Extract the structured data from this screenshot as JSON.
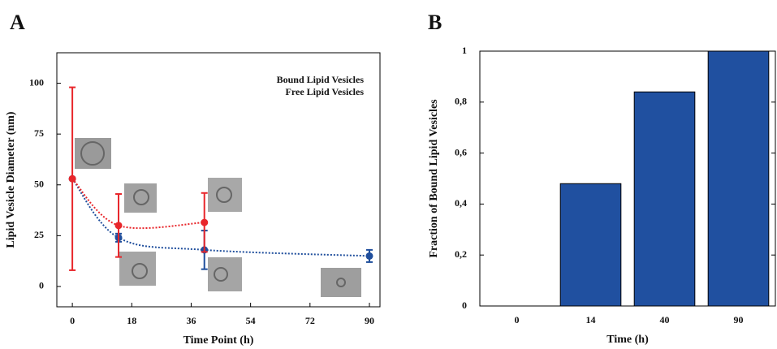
{
  "chart_data": [
    {
      "type": "line",
      "panel_label": "A",
      "x_label": "Time Point (h)",
      "y_label": "Lipid Vesicle Diameter (nm)",
      "xlim": [
        -4.7,
        93.2
      ],
      "xticks": [
        0,
        18,
        36,
        54,
        72,
        90
      ],
      "ylim": [
        -10,
        115
      ],
      "yticks": [
        0,
        25,
        50,
        75,
        100
      ],
      "legend": "upper right",
      "series": [
        {
          "name": "Bound Lipid Vesicles",
          "color": "#1f4e9c",
          "x": [
            0,
            14,
            40,
            90
          ],
          "values": [
            53,
            24,
            18,
            15
          ],
          "errors": [
            null,
            2,
            9.5,
            3
          ]
        },
        {
          "name": "Free Lipid Vesicles",
          "color": "#e8262b",
          "x": [
            0,
            14,
            40
          ],
          "values": [
            53,
            30,
            31.5
          ],
          "errors": [
            45,
            15.5,
            14.5
          ]
        }
      ]
    },
    {
      "type": "bar",
      "panel_label": "B",
      "x_label": "Time (h)",
      "y_label": "Fraction of Bound Lipid Vesicles",
      "categories": [
        "0",
        "14",
        "40",
        "90"
      ],
      "values": [
        0,
        0.48,
        0.84,
        1
      ],
      "color": "#2050a0",
      "ylim": [
        0,
        1
      ],
      "yticks": [
        0,
        {
          "value": 0.2,
          "label": "0,2"
        },
        {
          "value": 0.4,
          "label": "0,4"
        },
        {
          "value": 0.6,
          "label": "0,6"
        },
        {
          "value": 0.8,
          "label": "0,8"
        },
        1
      ]
    }
  ]
}
